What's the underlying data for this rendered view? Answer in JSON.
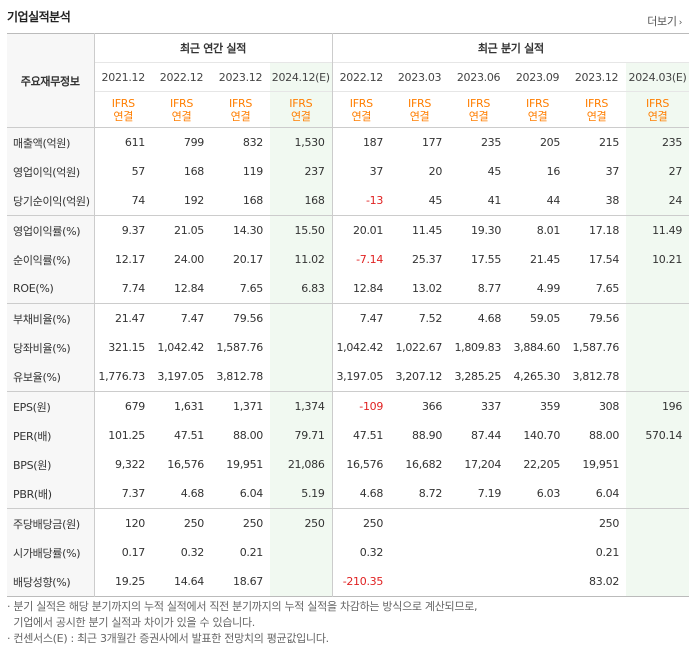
{
  "title": "기업실적분석",
  "more_label": "더보기",
  "group_annual": "최근 연간 실적",
  "group_quarter": "최근 분기 실적",
  "row_header": "주요재무정보",
  "periods": [
    "2021.12",
    "2022.12",
    "2023.12",
    "2024.12(E)",
    "2022.12",
    "2023.03",
    "2023.06",
    "2023.09",
    "2023.12",
    "2024.03(E)"
  ],
  "ifrs": [
    "IFRS",
    "IFRS",
    "IFRS",
    "IFRS",
    "IFRS",
    "IFRS",
    "IFRS",
    "IFRS",
    "IFRS",
    "IFRS"
  ],
  "consolidated": "연결",
  "rows": [
    {
      "label": "매출액(억원)",
      "values": [
        "611",
        "799",
        "832",
        "1,530",
        "187",
        "177",
        "235",
        "205",
        "215",
        "235"
      ]
    },
    {
      "label": "영업이익(억원)",
      "values": [
        "57",
        "168",
        "119",
        "237",
        "37",
        "20",
        "45",
        "16",
        "37",
        "27"
      ]
    },
    {
      "label": "당기순이익(억원)",
      "values": [
        "74",
        "192",
        "168",
        "168",
        "-13",
        "45",
        "41",
        "44",
        "38",
        "24"
      ]
    },
    {
      "label": "영업이익률(%)",
      "values": [
        "9.37",
        "21.05",
        "14.30",
        "15.50",
        "20.01",
        "11.45",
        "19.30",
        "8.01",
        "17.18",
        "11.49"
      ]
    },
    {
      "label": "순이익률(%)",
      "values": [
        "12.17",
        "24.00",
        "20.17",
        "11.02",
        "-7.14",
        "25.37",
        "17.55",
        "21.45",
        "17.54",
        "10.21"
      ]
    },
    {
      "label": "ROE(%)",
      "values": [
        "7.74",
        "12.84",
        "7.65",
        "6.83",
        "12.84",
        "13.02",
        "8.77",
        "4.99",
        "7.65",
        ""
      ]
    },
    {
      "label": "부채비율(%)",
      "values": [
        "21.47",
        "7.47",
        "79.56",
        "",
        "7.47",
        "7.52",
        "4.68",
        "59.05",
        "79.56",
        ""
      ]
    },
    {
      "label": "당좌비율(%)",
      "values": [
        "321.15",
        "1,042.42",
        "1,587.76",
        "",
        "1,042.42",
        "1,022.67",
        "1,809.83",
        "3,884.60",
        "1,587.76",
        ""
      ]
    },
    {
      "label": "유보율(%)",
      "values": [
        "1,776.73",
        "3,197.05",
        "3,812.78",
        "",
        "3,197.05",
        "3,207.12",
        "3,285.25",
        "4,265.30",
        "3,812.78",
        ""
      ]
    },
    {
      "label": "EPS(원)",
      "values": [
        "679",
        "1,631",
        "1,371",
        "1,374",
        "-109",
        "366",
        "337",
        "359",
        "308",
        "196"
      ]
    },
    {
      "label": "PER(배)",
      "values": [
        "101.25",
        "47.51",
        "88.00",
        "79.71",
        "47.51",
        "88.90",
        "87.44",
        "140.70",
        "88.00",
        "570.14"
      ]
    },
    {
      "label": "BPS(원)",
      "values": [
        "9,322",
        "16,576",
        "19,951",
        "21,086",
        "16,576",
        "16,682",
        "17,204",
        "22,205",
        "19,951",
        ""
      ]
    },
    {
      "label": "PBR(배)",
      "values": [
        "7.37",
        "4.68",
        "6.04",
        "5.19",
        "4.68",
        "8.72",
        "7.19",
        "6.03",
        "6.04",
        ""
      ]
    },
    {
      "label": "주당배당금(원)",
      "values": [
        "120",
        "250",
        "250",
        "250",
        "250",
        "",
        "",
        "",
        "250",
        ""
      ]
    },
    {
      "label": "시가배당률(%)",
      "values": [
        "0.17",
        "0.32",
        "0.21",
        "",
        "0.32",
        "",
        "",
        "",
        "0.21",
        ""
      ]
    },
    {
      "label": "배당성향(%)",
      "values": [
        "19.25",
        "14.64",
        "18.67",
        "",
        "-210.35",
        "",
        "",
        "",
        "83.02",
        ""
      ]
    }
  ],
  "notes": [
    "· 분기 실적은 해당 분기까지의 누적 실적에서 직전 분기까지의 누적 실적을 차감하는 방식으로 계산되므로,",
    "  기업에서 공시한 분기 실적과 차이가 있을 수 있습니다.",
    "· 컨센서스(E) : 최근 3개월간 증권사에서 발표한 전망치의 평균값입니다."
  ]
}
